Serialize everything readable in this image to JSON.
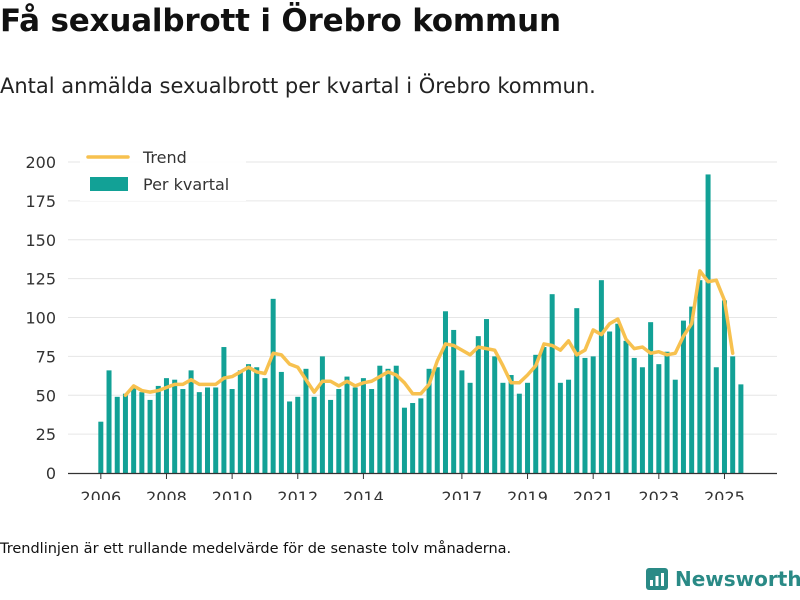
{
  "title": "Få sexualbrott i Örebro kommun",
  "subtitle": "Antal anmälda sexualbrott per kvartal i Örebro kommun.",
  "footnote": "Trendlinjen är ett rullande medelvärde för de senaste tolv månaderna.",
  "brand": {
    "name": "Newsworthy",
    "icon": "newsworthy-logo-icon",
    "color": "#2a8a86"
  },
  "colors": {
    "bars": "#12a196",
    "trend": "#f7c14f",
    "grid": "#e6e6e6",
    "axis": "#333333"
  },
  "chart_data": {
    "type": "bar",
    "title": "",
    "xlabel": "",
    "ylabel": "",
    "ylim": [
      0,
      200
    ],
    "yticks": [
      0,
      25,
      50,
      75,
      100,
      125,
      150,
      175,
      200
    ],
    "xlim": [
      2005.0,
      2026.6
    ],
    "xticks": [
      2006,
      2008,
      2010,
      2012,
      2014,
      2017,
      2019,
      2021,
      2023,
      2025
    ],
    "legend": {
      "position": "top-left",
      "items": [
        "Trend",
        "Per kvartal"
      ]
    },
    "grid": true,
    "x": [
      2006.0,
      2006.25,
      2006.5,
      2006.75,
      2007.0,
      2007.25,
      2007.5,
      2007.75,
      2008.0,
      2008.25,
      2008.5,
      2008.75,
      2009.0,
      2009.25,
      2009.5,
      2009.75,
      2010.0,
      2010.25,
      2010.5,
      2010.75,
      2011.0,
      2011.25,
      2011.5,
      2011.75,
      2012.0,
      2012.25,
      2012.5,
      2012.75,
      2013.0,
      2013.25,
      2013.5,
      2013.75,
      2014.0,
      2014.25,
      2014.5,
      2014.75,
      2015.0,
      2015.25,
      2015.5,
      2015.75,
      2016.0,
      2016.25,
      2016.5,
      2016.75,
      2017.0,
      2017.25,
      2017.5,
      2017.75,
      2018.0,
      2018.25,
      2018.5,
      2018.75,
      2019.0,
      2019.25,
      2019.5,
      2019.75,
      2020.0,
      2020.25,
      2020.5,
      2020.75,
      2021.0,
      2021.25,
      2021.5,
      2021.75,
      2022.0,
      2022.25,
      2022.5,
      2022.75,
      2023.0,
      2023.25,
      2023.5,
      2023.75,
      2024.0,
      2024.25,
      2024.5,
      2024.75,
      2025.0,
      2025.25,
      2025.5
    ],
    "series": [
      {
        "name": "Per kvartal",
        "type": "bar",
        "values": [
          33,
          66,
          49,
          51,
          55,
          52,
          47,
          56,
          61,
          60,
          54,
          66,
          52,
          55,
          55,
          81,
          54,
          66,
          70,
          68,
          61,
          112,
          65,
          46,
          49,
          67,
          49,
          75,
          47,
          54,
          62,
          55,
          61,
          54,
          69,
          67,
          69,
          42,
          45,
          48,
          67,
          68,
          104,
          92,
          66,
          58,
          88,
          99,
          75,
          58,
          63,
          51,
          58,
          76,
          81,
          115,
          58,
          60,
          106,
          74,
          75,
          124,
          91,
          96,
          85,
          74,
          68,
          97,
          70,
          78,
          60,
          98,
          107,
          124,
          192,
          68,
          111,
          75,
          57
        ]
      },
      {
        "name": "Trend",
        "type": "line",
        "values": [
          null,
          null,
          null,
          50,
          56,
          53,
          52,
          53,
          55,
          57,
          57,
          60,
          57,
          57,
          57,
          61,
          62,
          65,
          68,
          65,
          64,
          77,
          76,
          70,
          68,
          60,
          52,
          59,
          59,
          56,
          59,
          56,
          58,
          59,
          62,
          65,
          63,
          58,
          51,
          51,
          57,
          72,
          83,
          82,
          79,
          76,
          81,
          80,
          79,
          69,
          58,
          58,
          63,
          69,
          83,
          82,
          79,
          85,
          76,
          79,
          92,
          89,
          96,
          99,
          86,
          80,
          81,
          77,
          78,
          76,
          77,
          88,
          96,
          130,
          123,
          124,
          111,
          77,
          null
        ]
      }
    ]
  }
}
